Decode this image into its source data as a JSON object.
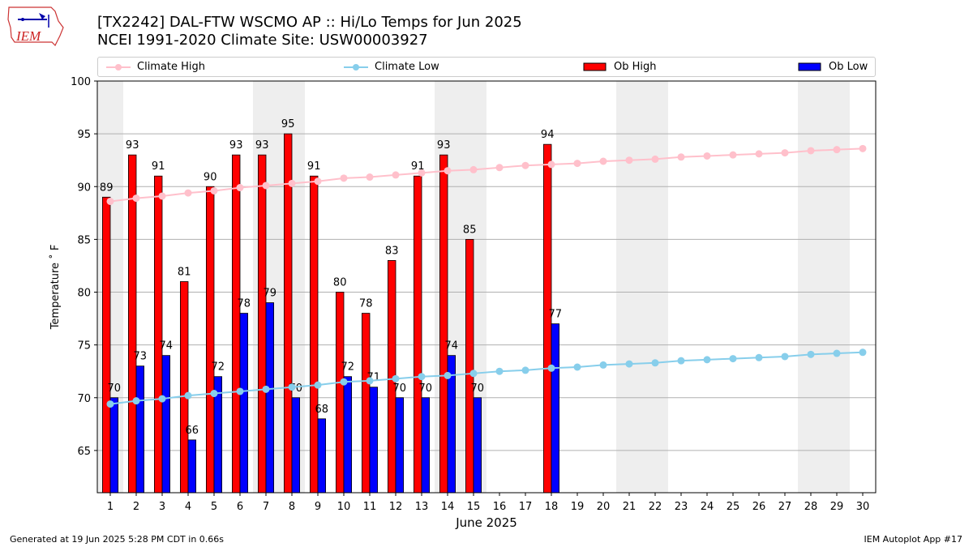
{
  "header": {
    "title_line1": "[TX2242] DAL-FTW WSCMO AP :: Hi/Lo Temps for Jun 2025",
    "title_line2": "NCEI 1991-2020 Climate Site: USW00003927"
  },
  "logo": {
    "text": "IEM"
  },
  "legend": {
    "items": [
      {
        "label": "Climate High",
        "color": "#ffc0cb",
        "kind": "line"
      },
      {
        "label": "Climate Low",
        "color": "#87ceeb",
        "kind": "line"
      },
      {
        "label": "Ob High",
        "color": "#ff0000",
        "kind": "box"
      },
      {
        "label": "Ob Low",
        "color": "#0000ff",
        "kind": "box"
      }
    ],
    "placement": "top"
  },
  "footer": {
    "left": "Generated at 19 Jun 2025 5:28 PM CDT in 0.66s",
    "right": "IEM Autoplot App #17"
  },
  "chart_data": {
    "type": "bar",
    "xlabel": "June 2025",
    "ylabel": "Temperature ˚ F",
    "ylim": [
      61,
      100
    ],
    "yticks": [
      65,
      70,
      75,
      80,
      85,
      90,
      95,
      100
    ],
    "grid": "horizontal",
    "categories": [
      1,
      2,
      3,
      4,
      5,
      6,
      7,
      8,
      9,
      10,
      11,
      12,
      13,
      14,
      15,
      16,
      17,
      18,
      19,
      20,
      21,
      22,
      23,
      24,
      25,
      26,
      27,
      28,
      29,
      30
    ],
    "weekend_shading_days": [
      [
        1,
        1
      ],
      [
        7,
        8
      ],
      [
        14,
        15
      ],
      [
        21,
        22
      ],
      [
        28,
        29
      ]
    ],
    "series": [
      {
        "name": "Ob High",
        "type": "bar",
        "color": "#ff0000",
        "values": [
          89,
          93,
          91,
          81,
          90,
          93,
          93,
          95,
          91,
          80,
          78,
          83,
          91,
          93,
          85,
          null,
          null,
          94,
          null,
          null,
          null,
          null,
          null,
          null,
          null,
          null,
          null,
          null,
          null,
          null
        ]
      },
      {
        "name": "Ob Low",
        "type": "bar",
        "color": "#0000ff",
        "values": [
          70,
          73,
          74,
          66,
          72,
          78,
          79,
          70,
          68,
          72,
          71,
          70,
          70,
          74,
          70,
          null,
          null,
          77,
          null,
          null,
          null,
          null,
          null,
          null,
          null,
          null,
          null,
          null,
          null,
          null
        ]
      },
      {
        "name": "Climate High",
        "type": "line",
        "color": "#ffc0cb",
        "values": [
          88.6,
          88.9,
          89.1,
          89.4,
          89.6,
          89.9,
          90.1,
          90.3,
          90.5,
          90.8,
          90.9,
          91.1,
          91.3,
          91.5,
          91.6,
          91.8,
          92.0,
          92.1,
          92.2,
          92.4,
          92.5,
          92.6,
          92.8,
          92.9,
          93.0,
          93.1,
          93.2,
          93.4,
          93.5,
          93.6
        ]
      },
      {
        "name": "Climate Low",
        "type": "line",
        "color": "#87ceeb",
        "values": [
          69.4,
          69.7,
          69.9,
          70.2,
          70.4,
          70.6,
          70.8,
          71.0,
          71.2,
          71.5,
          71.6,
          71.8,
          72.0,
          72.1,
          72.3,
          72.5,
          72.6,
          72.8,
          72.9,
          73.1,
          73.2,
          73.3,
          73.5,
          73.6,
          73.7,
          73.8,
          73.9,
          74.1,
          74.2,
          74.3
        ]
      }
    ]
  }
}
